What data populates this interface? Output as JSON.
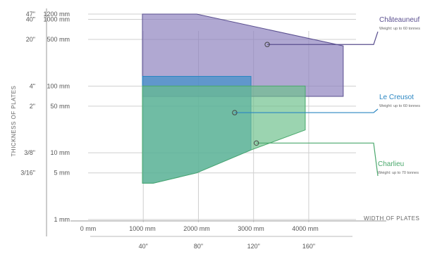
{
  "chart_data": {
    "type": "area",
    "title": "",
    "xlabel": "WIDTH OF PLATES",
    "ylabel": "THICKNESS OF PLATES",
    "xlim": [
      0,
      5000
    ],
    "ylim": [
      1,
      1200
    ],
    "y_scale": "log",
    "grid": true,
    "x_ticks_primary": [
      {
        "value": 0,
        "label": "0 mm"
      },
      {
        "value": 1000,
        "label": "1000 mm"
      },
      {
        "value": 2000,
        "label": "2000 mm"
      },
      {
        "value": 3000,
        "label": "3000 mm"
      },
      {
        "value": 4000,
        "label": "4000 mm"
      }
    ],
    "x_ticks_secondary": [
      {
        "value": 1016,
        "label": "40\""
      },
      {
        "value": 2032,
        "label": "80\""
      },
      {
        "value": 3048,
        "label": "120\""
      },
      {
        "value": 4064,
        "label": "160\""
      }
    ],
    "y_ticks_primary": [
      {
        "value": 1200,
        "label": "1200 mm"
      },
      {
        "value": 1000,
        "label": "1000 mm"
      },
      {
        "value": 500,
        "label": "500 mm"
      },
      {
        "value": 100,
        "label": "100 mm"
      },
      {
        "value": 50,
        "label": "50 mm"
      },
      {
        "value": 10,
        "label": "10 mm"
      },
      {
        "value": 5,
        "label": "5 mm"
      },
      {
        "value": 1,
        "label": "1 mm"
      }
    ],
    "y_ticks_secondary": [
      {
        "value": 1200,
        "label": "47\""
      },
      {
        "value": 1000,
        "label": "40\""
      },
      {
        "value": 500,
        "label": "20\""
      },
      {
        "value": 100,
        "label": "4\""
      },
      {
        "value": 50,
        "label": "2\""
      },
      {
        "value": 10,
        "label": "3/8\""
      },
      {
        "value": 5,
        "label": "3/16\""
      }
    ],
    "series": [
      {
        "name": "Châteauneuf",
        "subtitle": "Weight: up to 60 tonnes",
        "color": "#8a7fbd",
        "line_color": "#5a4f8f",
        "points": [
          [
            1000,
            1200
          ],
          [
            2000,
            1200
          ],
          [
            4700,
            400
          ],
          [
            4700,
            70
          ],
          [
            1000,
            70
          ]
        ]
      },
      {
        "name": "Le Creusot",
        "subtitle": "Weight: up to 60 tonnes",
        "color": "#3a8fc8",
        "line_color": "#2a86c2",
        "points": [
          [
            1000,
            140
          ],
          [
            3000,
            140
          ],
          [
            3000,
            11
          ],
          [
            2000,
            5
          ],
          [
            1200,
            3.5
          ],
          [
            1000,
            3.5
          ]
        ]
      },
      {
        "name": "Charlieu",
        "subtitle": "Weight: up to 70 tonnes",
        "color": "#6cc08a",
        "line_color": "#4aa86c",
        "points": [
          [
            1000,
            100
          ],
          [
            4000,
            100
          ],
          [
            4000,
            22
          ],
          [
            3000,
            11
          ],
          [
            2000,
            5
          ],
          [
            1200,
            3.5
          ],
          [
            1000,
            3.5
          ]
        ]
      }
    ],
    "annotations": [
      {
        "series": "Châteauneuf",
        "anchor": [
          3300,
          420
        ]
      },
      {
        "series": "Le Creusot",
        "anchor": [
          2700,
          40
        ]
      },
      {
        "series": "Charlieu",
        "anchor": [
          3100,
          14
        ]
      }
    ]
  }
}
